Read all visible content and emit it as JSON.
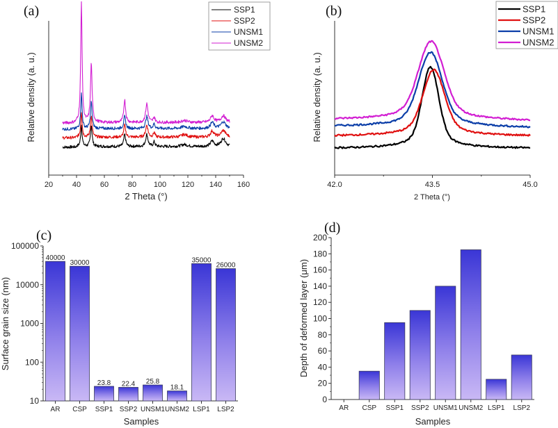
{
  "chart_data": [
    {
      "id": "a",
      "type": "line",
      "panel_label": "(a)",
      "title": "",
      "xlabel": "2 Theta  (°)",
      "ylabel": "Relative density (a. u.)",
      "xlim": [
        20,
        160
      ],
      "xticks": [
        "20",
        "40",
        "60",
        "80",
        "100",
        "120",
        "140",
        "160"
      ],
      "ylim": [
        0,
        10
      ],
      "yticks_shown": false,
      "legend_position": "top-right",
      "peaks": [
        {
          "x": 43.5,
          "width": 0.6
        },
        {
          "x": 50.6,
          "width": 0.7
        },
        {
          "x": 74.6,
          "width": 0.8
        },
        {
          "x": 90.5,
          "width": 1.0
        },
        {
          "x": 95.8,
          "width": 0.7
        },
        {
          "x": 117.5,
          "width": 2.5
        },
        {
          "x": 137.5,
          "width": 1.5
        },
        {
          "x": 145.5,
          "width": 2.0
        }
      ],
      "x_range_data": [
        30,
        150
      ],
      "series": [
        {
          "name": "SSP1",
          "color": "#000000",
          "baseline": 1.1,
          "peak_heights": [
            1.6,
            1.6,
            0.9,
            0.9,
            0.35,
            0.15,
            0.4,
            0.6
          ]
        },
        {
          "name": "SSP2",
          "color": "#e01010",
          "baseline": 1.8,
          "peak_heights": [
            1.9,
            1.6,
            0.9,
            0.9,
            0.35,
            0.2,
            0.45,
            0.5
          ]
        },
        {
          "name": "UNSM1",
          "color": "#0b3ea8",
          "baseline": 2.45,
          "peak_heights": [
            2.6,
            2.0,
            0.9,
            0.9,
            0.35,
            0.15,
            0.45,
            0.5
          ]
        },
        {
          "name": "UNSM2",
          "color": "#d21ed2",
          "baseline": 2.9,
          "peak_heights": [
            9.0,
            4.4,
            1.7,
            1.4,
            0.4,
            0.15,
            0.5,
            0.5
          ]
        }
      ]
    },
    {
      "id": "b",
      "type": "line",
      "panel_label": "(b)",
      "title": "",
      "xlabel": "2 Theta  (°)",
      "ylabel": "Relative density (a. u.)",
      "xlim": [
        42.0,
        45.0
      ],
      "xticks": [
        "42.0",
        "43.5",
        "45.0"
      ],
      "ylim": [
        0,
        10
      ],
      "yticks_shown": false,
      "legend_position": "top-right",
      "series": [
        {
          "name": "SSP1",
          "color": "#000000",
          "center": 43.47,
          "width": 0.17,
          "baseline_left": 1.2,
          "baseline_right": 1.2,
          "peak": 7.2
        },
        {
          "name": "SSP2",
          "color": "#e01010",
          "center": 43.52,
          "width": 0.22,
          "baseline_left": 2.1,
          "baseline_right": 2.1,
          "peak": 7.0
        },
        {
          "name": "UNSM1",
          "color": "#0b3ea8",
          "center": 43.47,
          "width": 0.24,
          "baseline_left": 2.8,
          "baseline_right": 2.7,
          "peak": 8.3
        },
        {
          "name": "UNSM2",
          "color": "#d21ed2",
          "center": 43.48,
          "width": 0.26,
          "baseline_left": 3.3,
          "baseline_right": 3.2,
          "peak": 9.1
        }
      ]
    },
    {
      "id": "c",
      "type": "bar",
      "panel_label": "(c)",
      "title": "",
      "xlabel": "Samples",
      "ylabel": "Surface grain size (nm)",
      "yscale": "log",
      "ylim": [
        10,
        100000
      ],
      "yticks": [
        "10",
        "100",
        "1000",
        "10000",
        "100000"
      ],
      "categories": [
        "AR",
        "CSP",
        "SSP1",
        "SSP2",
        "UNSM1",
        "UNSM2",
        "LSP1",
        "LSP2"
      ],
      "values": [
        40000,
        30000,
        23.8,
        22.4,
        25.8,
        18.1,
        35000,
        26000
      ],
      "data_labels": [
        "40000",
        "30000",
        "23.8",
        "22.4",
        "25.8",
        "18.1",
        "35000",
        "26000"
      ],
      "bar_color_top": "#3a36d6",
      "bar_color_bottom": "#c9b8f5"
    },
    {
      "id": "d",
      "type": "bar",
      "panel_label": "(d)",
      "title": "",
      "xlabel": "Samples",
      "ylabel": "Depth of deformed layer (μm)",
      "ylim": [
        0,
        200
      ],
      "yticks": [
        "0",
        "20",
        "40",
        "60",
        "80",
        "100",
        "120",
        "140",
        "160",
        "180",
        "200"
      ],
      "categories": [
        "AR",
        "CSP",
        "SSP1",
        "SSP2",
        "UNSM1",
        "UNSM2",
        "LSP1",
        "LSP2"
      ],
      "values": [
        0,
        35,
        95,
        110,
        140,
        185,
        25,
        55
      ],
      "bar_color_top": "#3a36d6",
      "bar_color_bottom": "#c9b8f5"
    }
  ]
}
